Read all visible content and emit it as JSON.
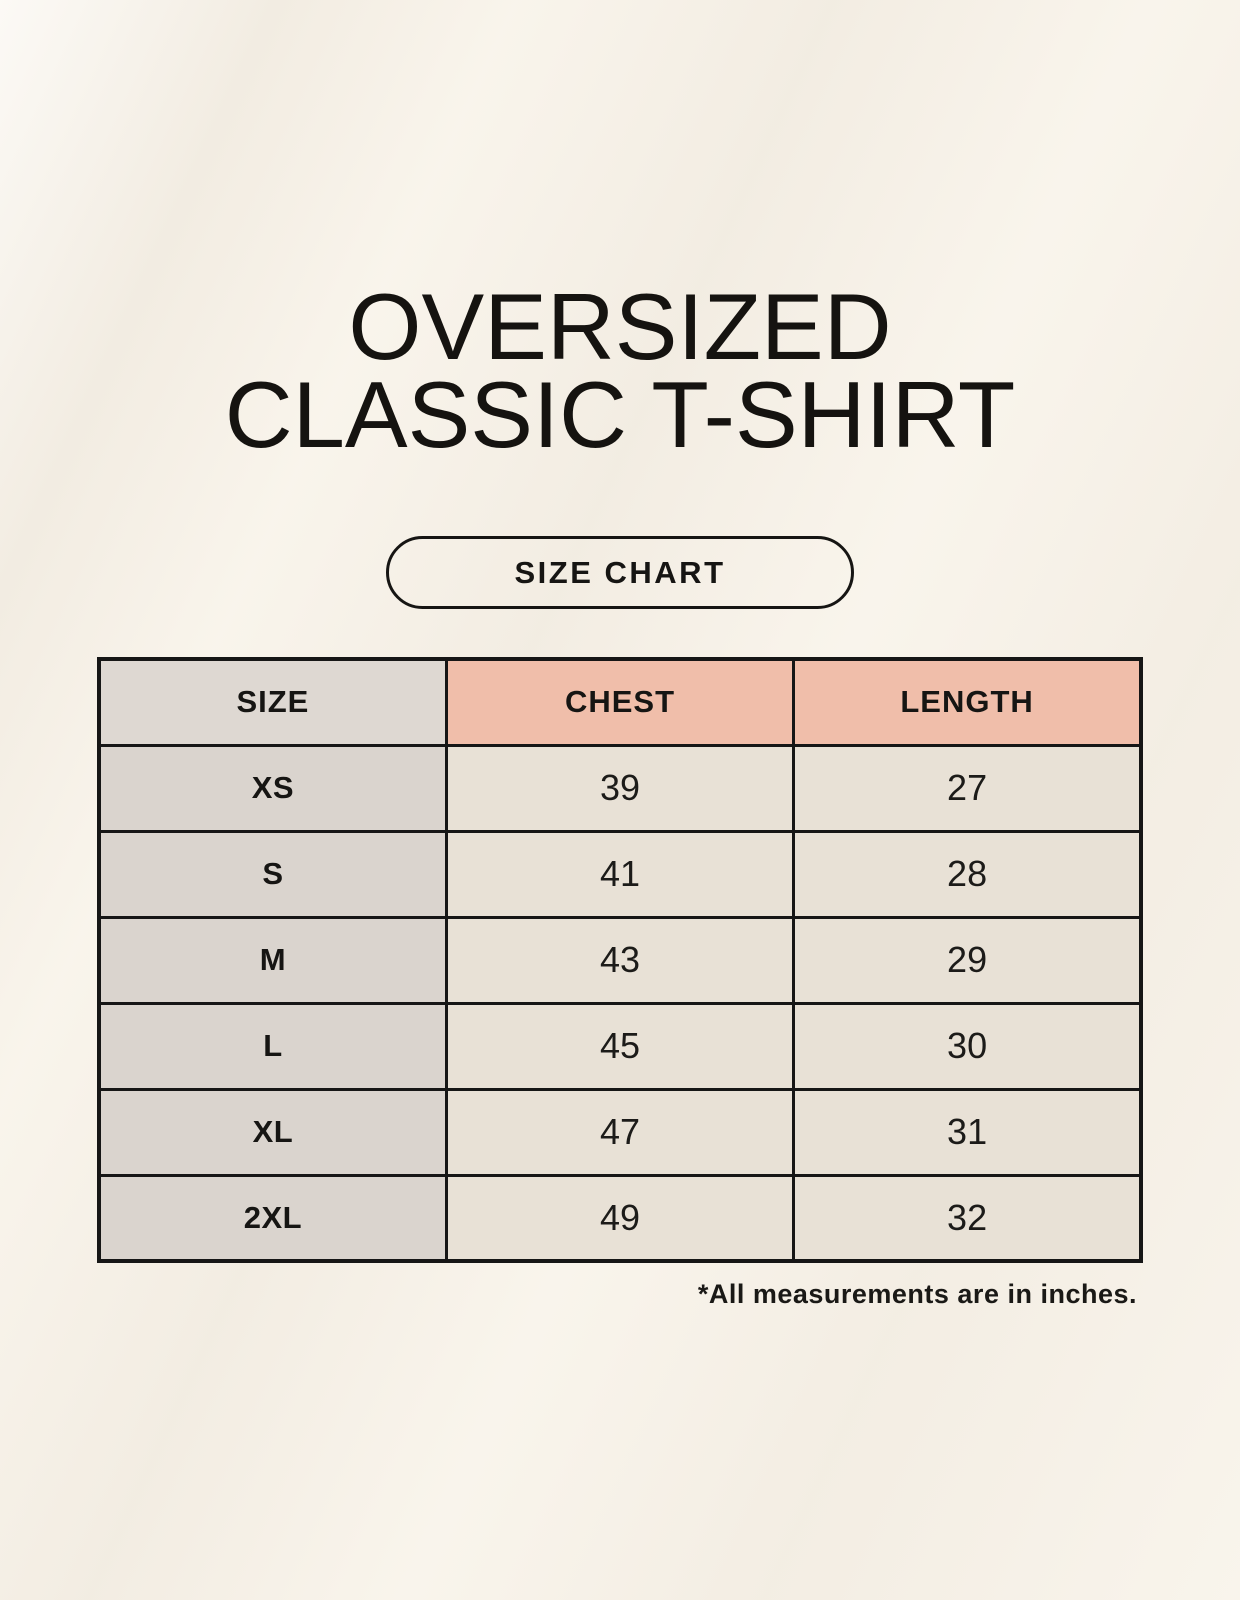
{
  "page": {
    "title": "OVERSIZED\nCLASSIC T-SHIRT",
    "button_label": "SIZE CHART",
    "footnote": "*All measurements are in inches."
  },
  "size_chart": {
    "columns": [
      "SIZE",
      "CHEST",
      "LENGTH"
    ],
    "rows": [
      {
        "size": "XS",
        "chest": "39",
        "length": "27"
      },
      {
        "size": "S",
        "chest": "41",
        "length": "28"
      },
      {
        "size": "M",
        "chest": "43",
        "length": "29"
      },
      {
        "size": "L",
        "chest": "45",
        "length": "30"
      },
      {
        "size": "XL",
        "chest": "47",
        "length": "31"
      },
      {
        "size": "2XL",
        "chest": "49",
        "length": "32"
      }
    ],
    "units_note": "inches"
  },
  "colors": {
    "background": "#f8f3ea",
    "header_gray": "#ded8d2",
    "header_pink": "#f0beaa",
    "row_label_gray": "#dad4ce",
    "data_cell_cream": "#e8e1d6",
    "border_black": "#161616",
    "text_black": "#161513"
  }
}
